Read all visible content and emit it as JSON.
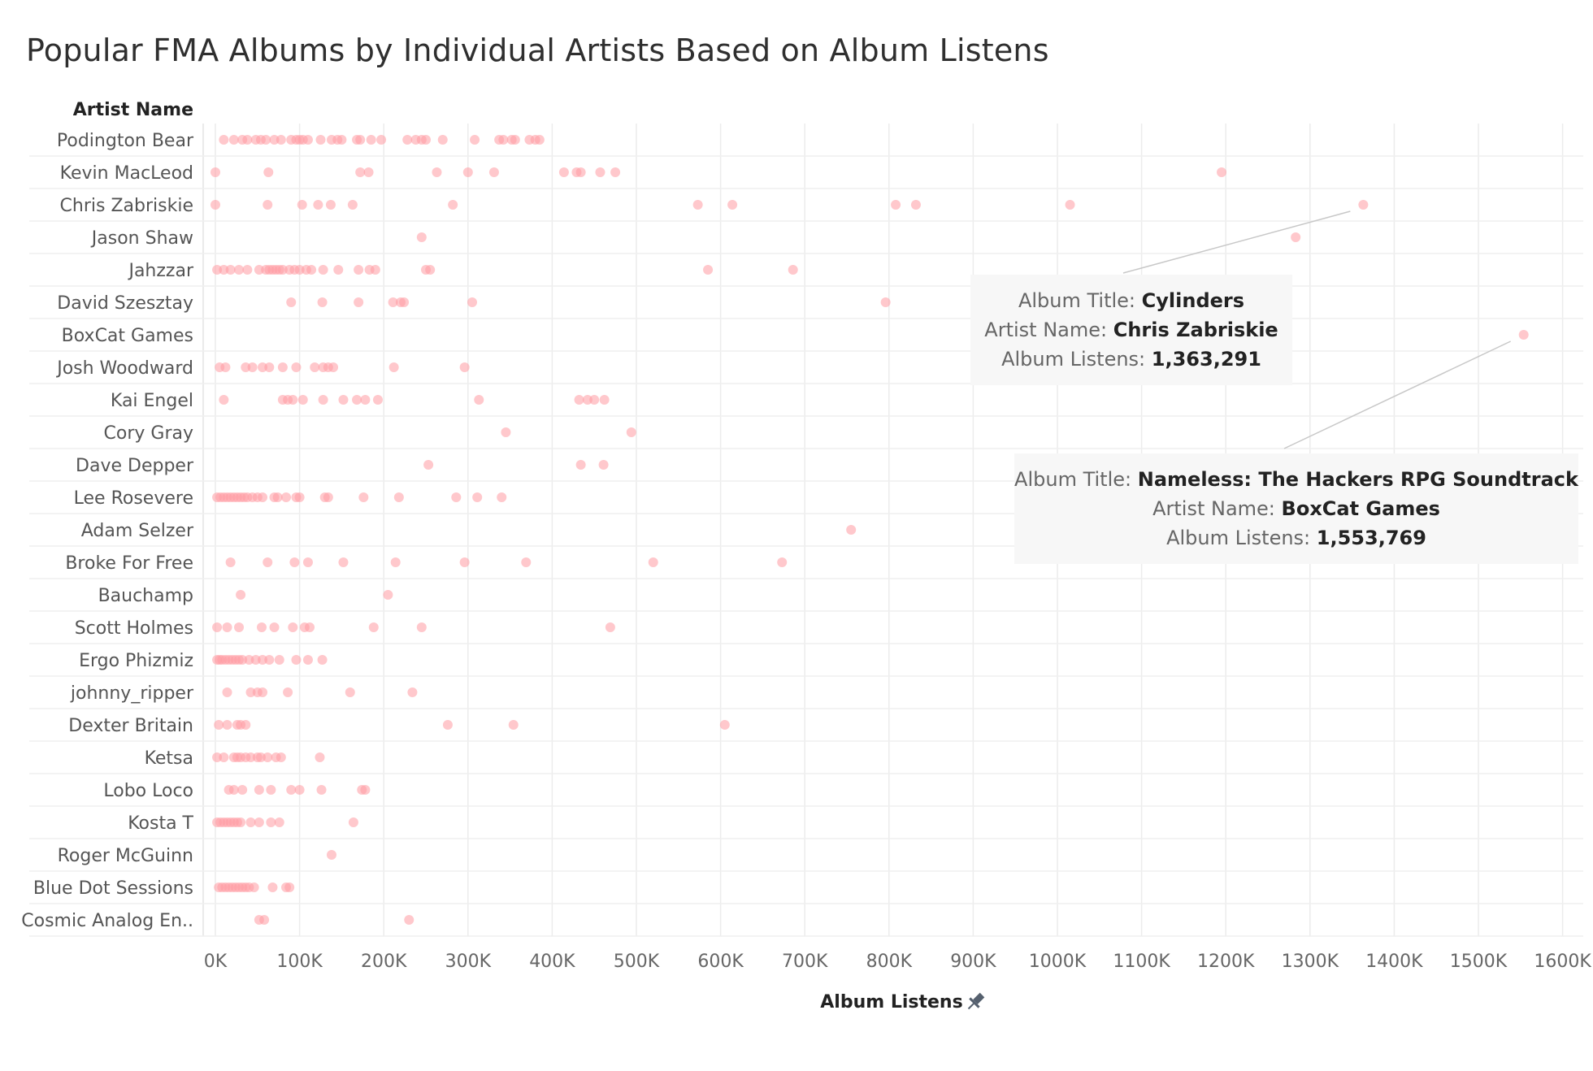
{
  "chart_data": {
    "type": "scatter",
    "title": "Popular FMA Albums by Individual Artists Based on Album Listens",
    "row_header": "Artist Name",
    "xlabel": "Album Listens",
    "xlim": [
      -10000,
      1630000
    ],
    "x_ticks": [
      0,
      100000,
      200000,
      300000,
      400000,
      500000,
      600000,
      700000,
      800000,
      900000,
      1000000,
      1100000,
      1200000,
      1300000,
      1400000,
      1500000,
      1600000
    ],
    "x_tick_labels": [
      "0K",
      "100K",
      "200K",
      "300K",
      "400K",
      "500K",
      "600K",
      "700K",
      "800K",
      "900K",
      "1000K",
      "1100K",
      "1200K",
      "1300K",
      "1400K",
      "1500K",
      "1600K"
    ],
    "grid": true,
    "point_color": "#ff9aa2",
    "rows": [
      {
        "artist": "Podington Bear",
        "values": [
          10000,
          22000,
          32000,
          38000,
          48000,
          54000,
          60000,
          70000,
          78000,
          90000,
          96000,
          100000,
          104000,
          110000,
          125000,
          138000,
          145000,
          150000,
          168000,
          172000,
          185000,
          197000,
          228000,
          238000,
          245000,
          250000,
          270000,
          308000,
          337000,
          342000,
          352000,
          356000,
          373000,
          380000,
          385000
        ]
      },
      {
        "artist": "Kevin MacLeod",
        "values": [
          0,
          63000,
          172000,
          182000,
          263000,
          300000,
          331000,
          414000,
          429000,
          434000,
          457000,
          475000,
          1195000
        ]
      },
      {
        "artist": "Chris Zabriskie",
        "values": [
          0,
          62000,
          103000,
          122000,
          137000,
          163000,
          282000,
          573000,
          614000,
          808000,
          832000,
          1015000,
          1363291
        ]
      },
      {
        "artist": "Jason Shaw",
        "values": [
          245000,
          1283000
        ]
      },
      {
        "artist": "Jahzzar",
        "values": [
          2000,
          10000,
          18000,
          28000,
          38000,
          52000,
          60000,
          64000,
          68000,
          72000,
          76000,
          80000,
          88000,
          94000,
          100000,
          108000,
          114000,
          128000,
          146000,
          170000,
          183000,
          190000,
          250000,
          255000,
          585000,
          686000
        ]
      },
      {
        "artist": "David Szesztay",
        "values": [
          90000,
          127000,
          170000,
          211000,
          220000,
          224000,
          305000,
          796000
        ]
      },
      {
        "artist": "BoxCat Games",
        "values": [
          1553769
        ]
      },
      {
        "artist": "Josh Woodward",
        "values": [
          5000,
          12000,
          36000,
          44000,
          56000,
          64000,
          80000,
          96000,
          118000,
          128000,
          134000,
          140000,
          212000,
          296000
        ]
      },
      {
        "artist": "Kai Engel",
        "values": [
          10000,
          80000,
          86000,
          92000,
          104000,
          128000,
          152000,
          168000,
          178000,
          193000,
          313000,
          432000,
          442000,
          450000,
          462000
        ]
      },
      {
        "artist": "Cory Gray",
        "values": [
          345000,
          494000
        ]
      },
      {
        "artist": "Dave Depper",
        "values": [
          253000,
          434000,
          461000
        ]
      },
      {
        "artist": "Lee Rosevere",
        "values": [
          2000,
          6000,
          10000,
          14000,
          18000,
          22000,
          26000,
          30000,
          34000,
          38000,
          44000,
          50000,
          56000,
          70000,
          74000,
          84000,
          96000,
          100000,
          130000,
          134000,
          176000,
          218000,
          286000,
          311000,
          340000
        ]
      },
      {
        "artist": "Adam Selzer",
        "values": [
          755000
        ]
      },
      {
        "artist": "Broke For Free",
        "values": [
          18000,
          62000,
          94000,
          110000,
          152000,
          214000,
          296000,
          369000,
          520000,
          673000
        ]
      },
      {
        "artist": "Bauchamp",
        "values": [
          30000,
          205000
        ]
      },
      {
        "artist": "Scott Holmes",
        "values": [
          2000,
          14000,
          28000,
          55000,
          70000,
          92000,
          106000,
          112000,
          188000,
          245000,
          469000
        ]
      },
      {
        "artist": "Ergo Phizmiz",
        "values": [
          2000,
          5000,
          8000,
          12000,
          16000,
          20000,
          24000,
          28000,
          32000,
          40000,
          48000,
          56000,
          64000,
          76000,
          96000,
          110000,
          127000
        ]
      },
      {
        "artist": "johnny_ripper",
        "values": [
          14000,
          42000,
          50000,
          56000,
          86000,
          160000,
          234000
        ]
      },
      {
        "artist": "Dexter Britain",
        "values": [
          4000,
          14000,
          26000,
          30000,
          36000,
          276000,
          354000,
          605000
        ]
      },
      {
        "artist": "Ketsa",
        "values": [
          2000,
          10000,
          22000,
          26000,
          30000,
          36000,
          42000,
          50000,
          54000,
          62000,
          72000,
          78000,
          124000
        ]
      },
      {
        "artist": "Lobo Loco",
        "values": [
          16000,
          22000,
          32000,
          52000,
          66000,
          90000,
          100000,
          126000,
          174000,
          178000
        ]
      },
      {
        "artist": "Kosta T",
        "values": [
          2000,
          6000,
          10000,
          14000,
          18000,
          22000,
          26000,
          30000,
          42000,
          52000,
          66000,
          76000,
          164000
        ]
      },
      {
        "artist": "Roger McGuinn",
        "values": [
          138000
        ]
      },
      {
        "artist": "Blue Dot Sessions",
        "values": [
          4000,
          8000,
          12000,
          16000,
          20000,
          24000,
          28000,
          32000,
          36000,
          40000,
          46000,
          68000,
          84000,
          88000
        ]
      },
      {
        "artist": "Cosmic Analog En..",
        "values": [
          52000,
          58000,
          230000
        ]
      }
    ],
    "tooltips": [
      {
        "title_label": "Album Title:",
        "title_value": "Cylinders",
        "artist_label": "Artist Name:",
        "artist_value": "Chris Zabriskie",
        "listens_label": "Album Listens:",
        "listens_value": "1,363,291",
        "artist_row": "Chris Zabriskie",
        "point_value": 1363291
      },
      {
        "title_label": "Album Title:",
        "title_value": "Nameless: The Hackers RPG Soundtrack",
        "artist_label": "Artist Name:",
        "artist_value": "BoxCat Games",
        "listens_label": "Album Listens:",
        "listens_value": "1,553,769",
        "artist_row": "BoxCat Games",
        "point_value": 1553769
      }
    ]
  }
}
